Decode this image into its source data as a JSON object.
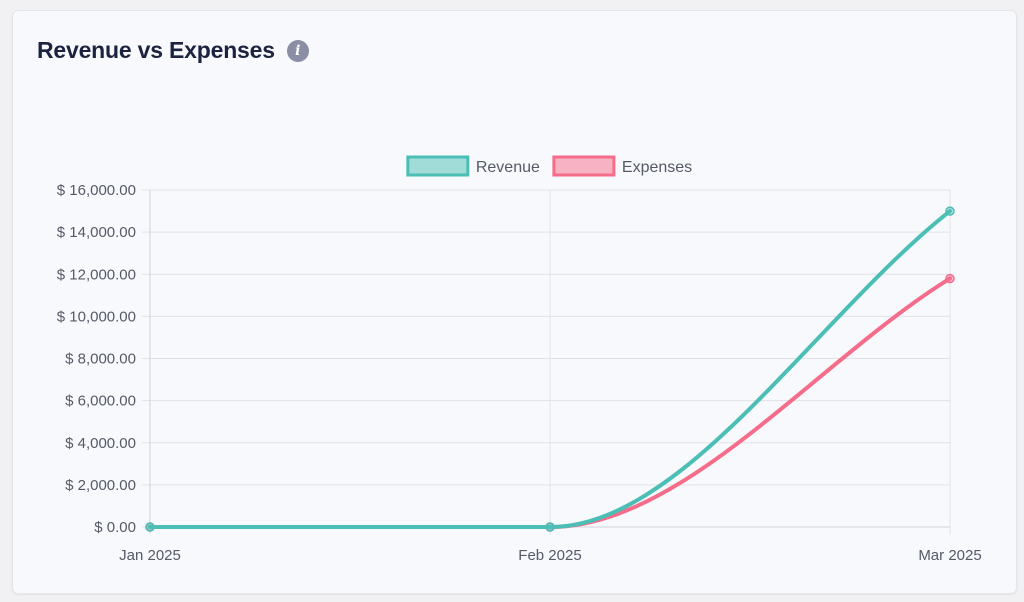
{
  "card": {
    "title": "Revenue vs Expenses",
    "info_icon": "info-icon"
  },
  "chart_data": {
    "type": "line",
    "categories": [
      "Jan 2025",
      "Feb 2025",
      "Mar 2025"
    ],
    "series": [
      {
        "name": "Revenue",
        "values": [
          0,
          0,
          15000
        ],
        "color": "#4bbfb6"
      },
      {
        "name": "Expenses",
        "values": [
          0,
          0,
          11800
        ],
        "color": "#f56d8a"
      }
    ],
    "ylim": [
      0,
      16000
    ],
    "yticks": [
      0,
      2000,
      4000,
      6000,
      8000,
      10000,
      12000,
      14000,
      16000
    ],
    "ytick_labels": [
      "$ 0.00",
      "$ 2,000.00",
      "$ 4,000.00",
      "$ 6,000.00",
      "$ 8,000.00",
      "$ 10,000.00",
      "$ 12,000.00",
      "$ 14,000.00",
      "$ 16,000.00"
    ],
    "grid": true,
    "legend": "top-center"
  }
}
